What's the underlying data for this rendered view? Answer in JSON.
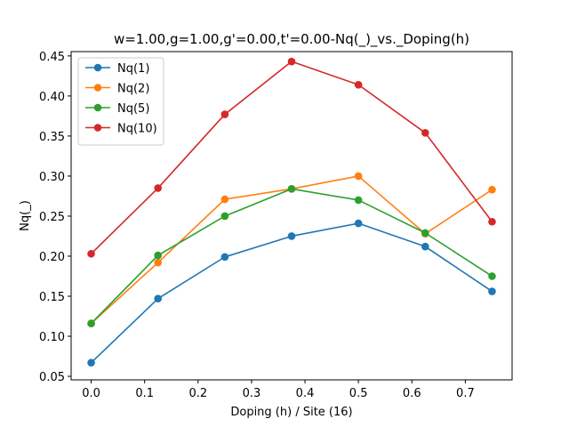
{
  "chart_data": {
    "type": "line",
    "title": "w=1.00,g=1.00,g'=0.00,t'=0.00-Nq(_)_vs._Doping(h)",
    "xlabel": "Doping (h) / Site (16)",
    "ylabel": "Nq(_)",
    "xlim": [
      -0.0375,
      0.7875
    ],
    "ylim": [
      0.0456,
      0.4554
    ],
    "xticks": [
      0.0,
      0.1,
      0.2,
      0.3,
      0.4,
      0.5,
      0.6,
      0.7
    ],
    "xtick_labels": [
      "0.0",
      "0.1",
      "0.2",
      "0.3",
      "0.4",
      "0.5",
      "0.6",
      "0.7"
    ],
    "yticks": [
      0.05,
      0.1,
      0.15,
      0.2,
      0.25,
      0.3,
      0.35,
      0.4,
      0.45
    ],
    "ytick_labels": [
      "0.05",
      "0.10",
      "0.15",
      "0.20",
      "0.25",
      "0.30",
      "0.35",
      "0.40",
      "0.45"
    ],
    "grid": false,
    "legend_position": "top-left",
    "x": [
      0.0,
      0.125,
      0.25,
      0.375,
      0.5,
      0.625,
      0.75
    ],
    "series": [
      {
        "name": "Nq(1)",
        "color": "#1f77b4",
        "values": [
          0.067,
          0.147,
          0.199,
          0.225,
          0.241,
          0.212,
          0.156
        ]
      },
      {
        "name": "Nq(2)",
        "color": "#ff7f0e",
        "values": [
          0.116,
          0.192,
          0.271,
          0.284,
          0.3,
          0.228,
          0.283
        ]
      },
      {
        "name": "Nq(5)",
        "color": "#2ca02c",
        "values": [
          0.116,
          0.201,
          0.25,
          0.284,
          0.27,
          0.229,
          0.175
        ]
      },
      {
        "name": "Nq(10)",
        "color": "#d62728",
        "values": [
          0.203,
          0.285,
          0.377,
          0.443,
          0.414,
          0.354,
          0.243
        ]
      }
    ]
  }
}
